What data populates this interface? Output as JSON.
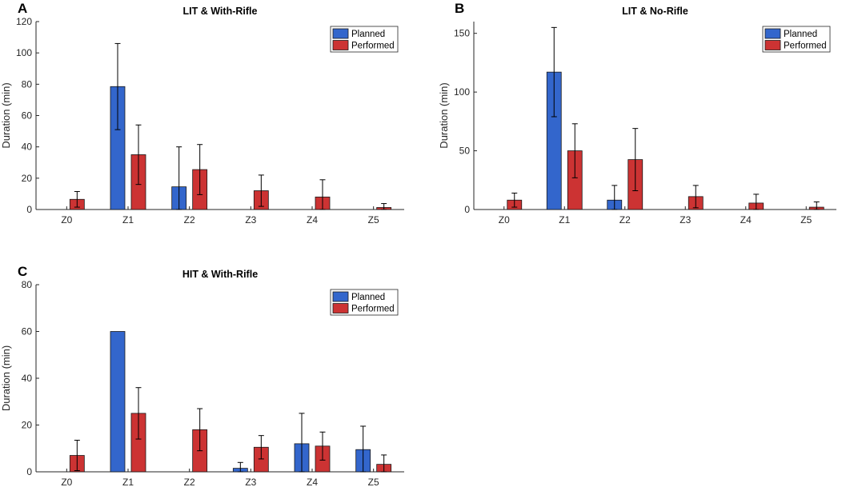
{
  "colors": {
    "planned": "#3366cc",
    "performed": "#cc3333",
    "axis": "#262626"
  },
  "chart_data": [
    {
      "panel": "A",
      "type": "bar",
      "title": "LIT & With-Rifle",
      "xlabel": "",
      "ylabel": "Duration (min)",
      "ylim": [
        0,
        120
      ],
      "yticks": [
        0,
        20,
        40,
        60,
        80,
        100,
        120
      ],
      "categories": [
        "Z0",
        "Z1",
        "Z2",
        "Z3",
        "Z4",
        "Z5"
      ],
      "legend_position": "top-right",
      "series": [
        {
          "name": "Planned",
          "values": [
            0,
            78.5,
            14.5,
            0,
            0,
            0
          ],
          "errors": [
            0,
            27.5,
            25.5,
            0,
            0,
            0
          ]
        },
        {
          "name": "Performed",
          "values": [
            6.5,
            35,
            25.5,
            12,
            8,
            1.3
          ],
          "errors": [
            5,
            19,
            16,
            10,
            11,
            2.5
          ]
        }
      ]
    },
    {
      "panel": "B",
      "type": "bar",
      "title": "LIT & No-Rifle",
      "xlabel": "",
      "ylabel": "Duration (min)",
      "ylim": [
        0,
        160
      ],
      "yticks": [
        0,
        50,
        100,
        150
      ],
      "categories": [
        "Z0",
        "Z1",
        "Z2",
        "Z3",
        "Z4",
        "Z5"
      ],
      "legend_position": "top-right",
      "series": [
        {
          "name": "Planned",
          "values": [
            0,
            117,
            8,
            0,
            0,
            0
          ],
          "errors": [
            0,
            38,
            12.5,
            0,
            0,
            0
          ]
        },
        {
          "name": "Performed",
          "values": [
            8,
            50,
            42.5,
            11,
            5.5,
            2
          ],
          "errors": [
            6,
            23,
            26.5,
            9.5,
            7.5,
            4.5
          ]
        }
      ]
    },
    {
      "panel": "C",
      "type": "bar",
      "title": "HIT & With-Rifle",
      "xlabel": "",
      "ylabel": "Duration (min)",
      "ylim": [
        0,
        80
      ],
      "yticks": [
        0,
        20,
        40,
        60,
        80
      ],
      "categories": [
        "Z0",
        "Z1",
        "Z2",
        "Z3",
        "Z4",
        "Z5"
      ],
      "legend_position": "top-right",
      "series": [
        {
          "name": "Planned",
          "values": [
            0,
            60,
            0,
            1.5,
            12,
            9.5
          ],
          "errors": [
            0,
            0,
            0,
            2.5,
            13,
            10
          ]
        },
        {
          "name": "Performed",
          "values": [
            7,
            25,
            18,
            10.5,
            11,
            3.2
          ],
          "errors": [
            6.5,
            11,
            9,
            5,
            6,
            4
          ]
        }
      ]
    }
  ]
}
